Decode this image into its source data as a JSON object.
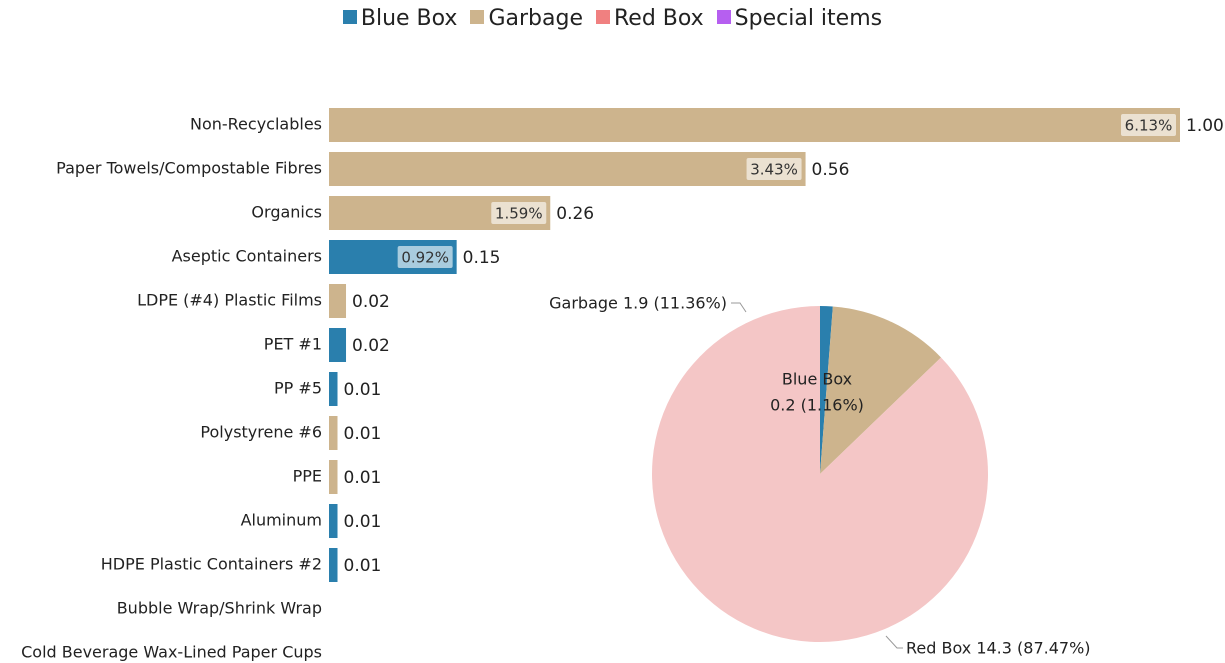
{
  "legend": [
    {
      "label": "Blue Box",
      "color": "#2a7fad"
    },
    {
      "label": "Garbage",
      "color": "#cdb48d"
    },
    {
      "label": "Red Box",
      "color": "#f08080"
    },
    {
      "label": "Special items",
      "color": "#b65ff0"
    }
  ],
  "chart_data": [
    {
      "type": "bar",
      "orientation": "horizontal",
      "categories": [
        "Non-Recyclables",
        "Paper Towels/Compostable Fibres",
        "Organics",
        "Aseptic Containers",
        "LDPE (#4) Plastic Films",
        "PET #1",
        "PP #5",
        "Polystyrene #6",
        "PPE",
        "Aluminum",
        "HDPE Plastic Containers #2",
        "Bubble Wrap/Shrink Wrap",
        "Cold Beverage Wax-Lined Paper Cups"
      ],
      "values": [
        1.0,
        0.56,
        0.26,
        0.15,
        0.02,
        0.02,
        0.01,
        0.01,
        0.01,
        0.01,
        0.01,
        null,
        null
      ],
      "value_labels": [
        "1.00",
        "0.56",
        "0.26",
        "0.15",
        "0.02",
        "0.02",
        "0.01",
        "0.01",
        "0.01",
        "0.01",
        "0.01",
        "",
        ""
      ],
      "percent_labels": [
        "6.13%",
        "3.43%",
        "1.59%",
        "0.92%",
        "",
        "",
        "",
        "",
        "",
        "",
        "",
        "",
        ""
      ],
      "bin": [
        "Garbage",
        "Garbage",
        "Garbage",
        "Blue Box",
        "Garbage",
        "Blue Box",
        "Blue Box",
        "Garbage",
        "Garbage",
        "Blue Box",
        "Blue Box",
        "",
        ""
      ],
      "xlim": [
        0,
        1
      ]
    },
    {
      "type": "pie",
      "labels": [
        "Blue Box",
        "Garbage",
        "Red Box"
      ],
      "values": [
        0.2,
        1.9,
        14.3
      ],
      "percents": [
        1.16,
        11.36,
        87.47
      ],
      "colors": [
        "#2a7fad",
        "#cdb48d",
        "#f4c6c6"
      ],
      "slice_labels": [
        [
          "Blue Box",
          "0.2 (1.16%)"
        ],
        [
          "Garbage 1.9 (11.36%)"
        ],
        [
          "Red Box 14.3 (87.47%)"
        ]
      ]
    }
  ]
}
